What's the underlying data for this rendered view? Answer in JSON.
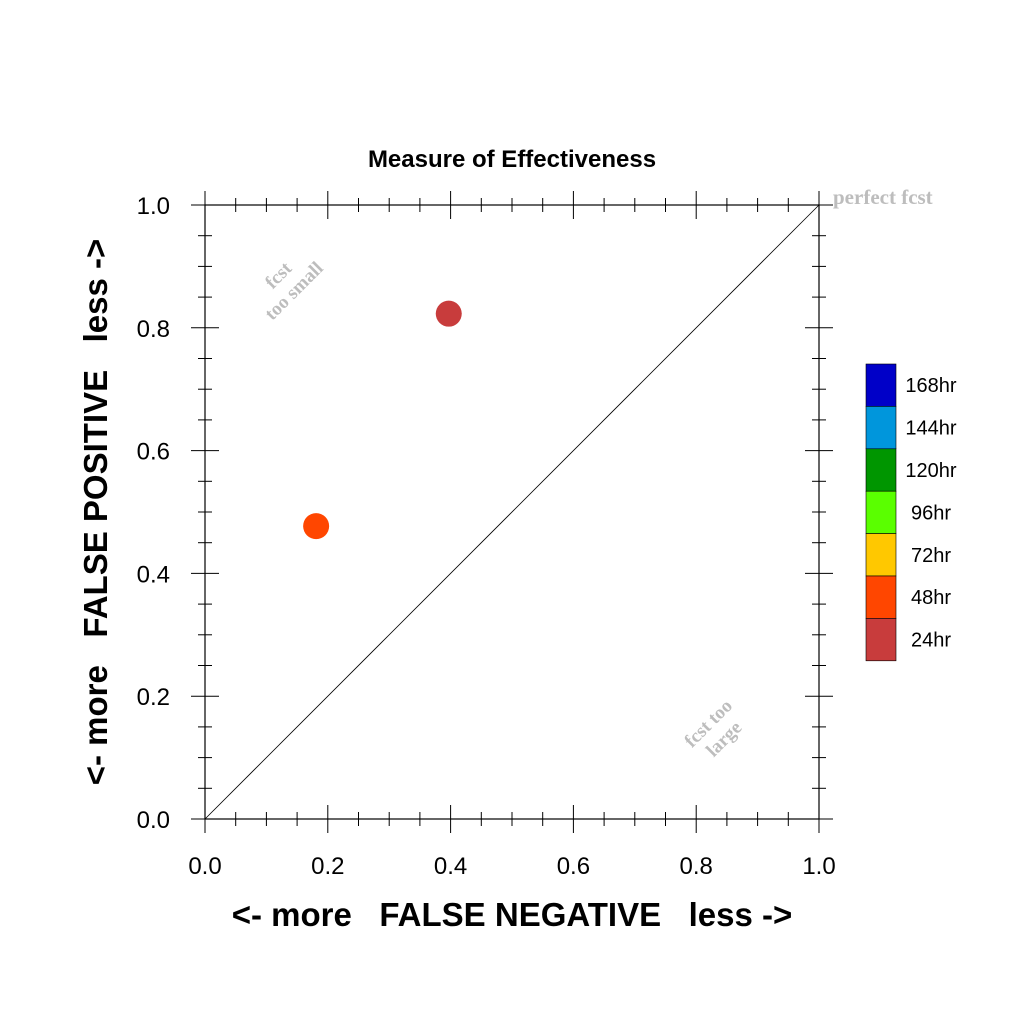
{
  "chart_data": {
    "type": "scatter",
    "title": "Measure of Effectiveness",
    "xlabel": "<- more   FALSE NEGATIVE   less ->",
    "ylabel": "<- more   FALSE POSITIVE   less ->",
    "xlim": [
      0.0,
      1.0
    ],
    "ylim": [
      0.0,
      1.0
    ],
    "xticks": [
      "0.0",
      "0.2",
      "0.4",
      "0.6",
      "0.8",
      "1.0"
    ],
    "yticks": [
      "0.0",
      "0.2",
      "0.4",
      "0.6",
      "0.8",
      "1.0"
    ],
    "grid": false,
    "diagonal_line": true,
    "annotations": {
      "perfect": "perfect fcst",
      "too_small_line1": "fcst",
      "too_small_line2": "too small",
      "too_large_line1": "fcst too",
      "too_large_line2": "large"
    },
    "legend": {
      "placement": "right",
      "entries": [
        {
          "label": "168hr",
          "color": "#0000c8"
        },
        {
          "label": "144hr",
          "color": "#0096dc"
        },
        {
          "label": "120hr",
          "color": "#009600"
        },
        {
          "label": "96hr",
          "color": "#5aff00"
        },
        {
          "label": "72hr",
          "color": "#ffc800"
        },
        {
          "label": "48hr",
          "color": "#ff4600"
        },
        {
          "label": "24hr",
          "color": "#c83c3c"
        }
      ]
    },
    "series": [
      {
        "name": "24hr",
        "color": "#c83c3c",
        "points": [
          {
            "x": 0.397,
            "y": 0.823
          }
        ]
      },
      {
        "name": "48hr",
        "color": "#ff4600",
        "points": [
          {
            "x": 0.181,
            "y": 0.477
          }
        ]
      }
    ]
  }
}
